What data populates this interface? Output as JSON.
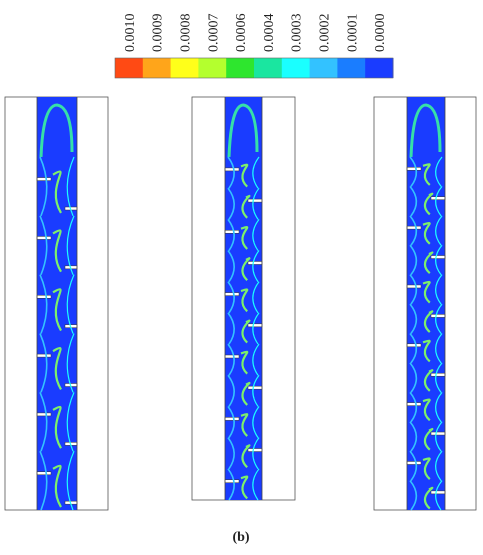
{
  "colorbar": {
    "labels": [
      "0.0010",
      "0.0009",
      "0.0008",
      "0.0007",
      "0.0006",
      "0.0004",
      "0.0003",
      "0.0002",
      "0.0001",
      "0.0000"
    ],
    "colors": [
      "#ff4a14",
      "#ffa51a",
      "#ffff1a",
      "#b4ff2e",
      "#2ee62e",
      "#1ae6a0",
      "#1affff",
      "#33c2ff",
      "#1a7dff",
      "#1a3cff"
    ]
  },
  "caption": "(b)"
}
